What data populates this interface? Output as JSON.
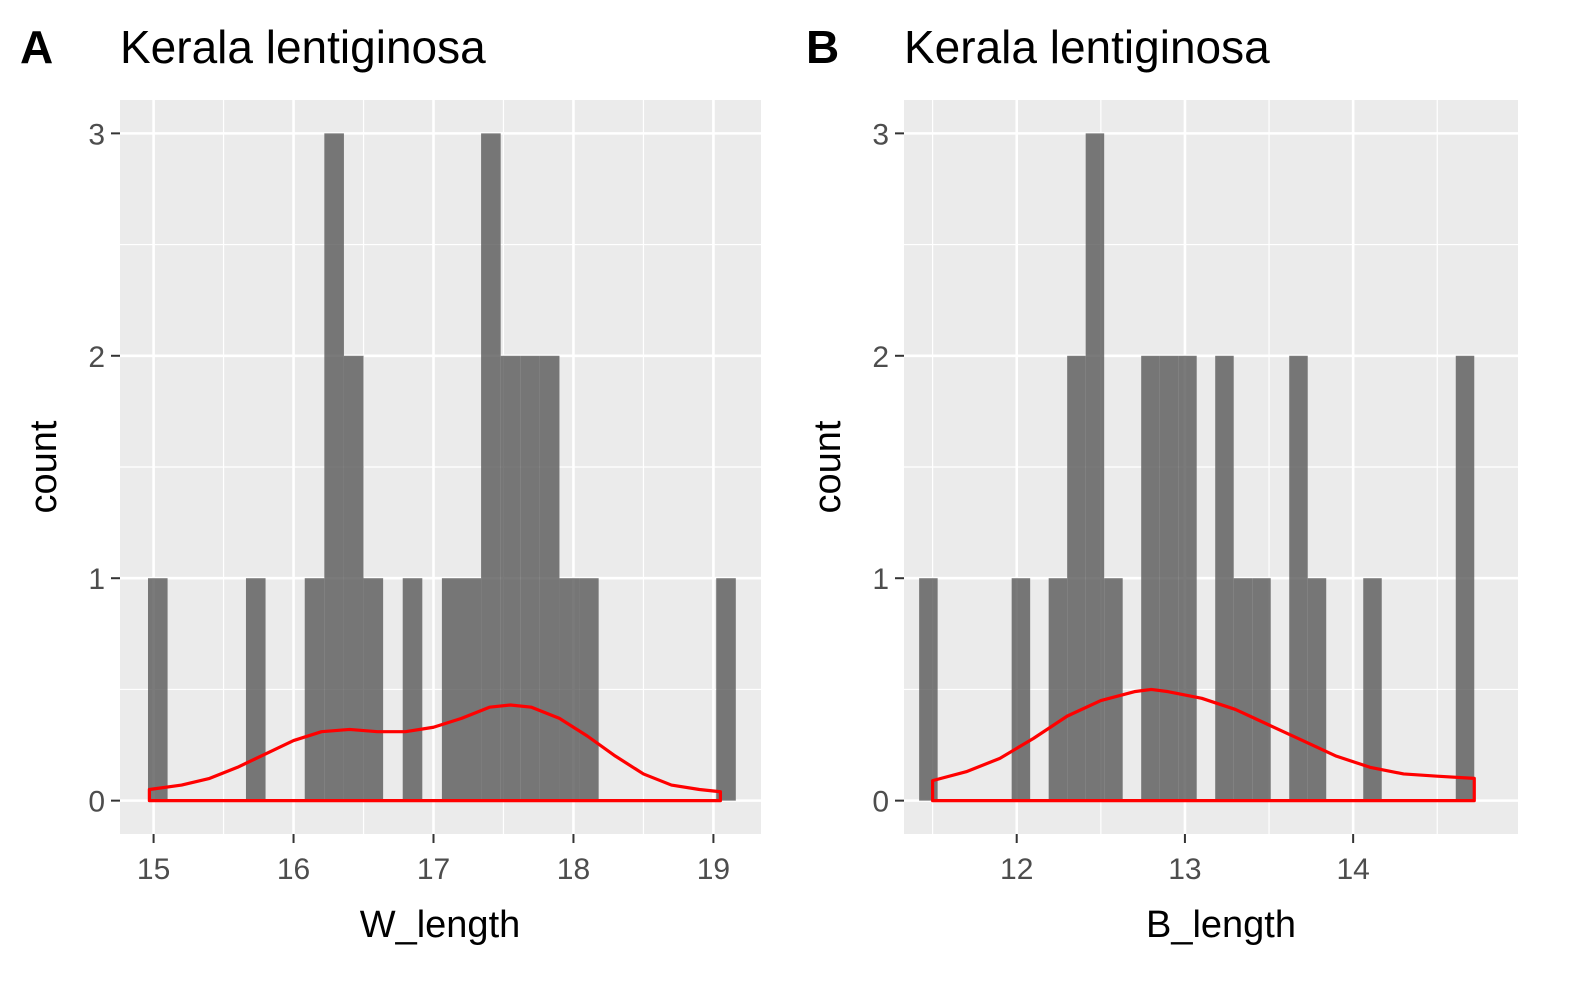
{
  "colors": {
    "panel_background": "#ebebeb",
    "grid": "#ffffff",
    "bar_fill": "#595959",
    "density_line": "#ff0000",
    "tick": "#333333"
  },
  "chart_data": [
    {
      "type": "bar",
      "tag": "A",
      "title": "Kerala lentiginosa",
      "xlabel": "W_length",
      "ylabel": "count",
      "xlim": [
        14.76,
        19.34
      ],
      "ylim": [
        -0.15,
        3.15
      ],
      "xticks": [
        15,
        16,
        17,
        18,
        19
      ],
      "yticks": [
        0,
        1,
        2,
        3
      ],
      "xtick_labels": [
        "15",
        "16",
        "17",
        "18",
        "19"
      ],
      "ytick_labels": [
        "0",
        "1",
        "2",
        "3"
      ],
      "grid": true,
      "bin_width": 0.14,
      "bins": [
        {
          "x": 15.03,
          "count": 1
        },
        {
          "x": 15.73,
          "count": 1
        },
        {
          "x": 16.15,
          "count": 1
        },
        {
          "x": 16.29,
          "count": 3
        },
        {
          "x": 16.43,
          "count": 2
        },
        {
          "x": 16.57,
          "count": 1
        },
        {
          "x": 16.85,
          "count": 1
        },
        {
          "x": 17.13,
          "count": 1
        },
        {
          "x": 17.27,
          "count": 1
        },
        {
          "x": 17.41,
          "count": 3
        },
        {
          "x": 17.55,
          "count": 2
        },
        {
          "x": 17.69,
          "count": 2
        },
        {
          "x": 17.83,
          "count": 2
        },
        {
          "x": 17.97,
          "count": 1
        },
        {
          "x": 18.11,
          "count": 1
        },
        {
          "x": 19.09,
          "count": 1
        }
      ],
      "density": {
        "x": [
          14.97,
          15.2,
          15.4,
          15.6,
          15.8,
          16.0,
          16.2,
          16.4,
          16.6,
          16.8,
          17.0,
          17.2,
          17.4,
          17.55,
          17.7,
          17.9,
          18.1,
          18.3,
          18.5,
          18.7,
          18.9,
          19.05
        ],
        "y": [
          0.05,
          0.07,
          0.1,
          0.15,
          0.21,
          0.27,
          0.31,
          0.32,
          0.31,
          0.31,
          0.33,
          0.37,
          0.42,
          0.43,
          0.42,
          0.37,
          0.29,
          0.2,
          0.12,
          0.07,
          0.05,
          0.04
        ]
      }
    },
    {
      "type": "bar",
      "tag": "B",
      "title": "Kerala lentiginosa",
      "xlabel": "B_length",
      "ylabel": "count",
      "xlim": [
        11.33,
        14.98
      ],
      "ylim": [
        -0.15,
        3.15
      ],
      "xticks": [
        12,
        13,
        14
      ],
      "yticks": [
        0,
        1,
        2,
        3
      ],
      "xtick_labels": [
        "12",
        "13",
        "14"
      ],
      "ytick_labels": [
        "0",
        "1",
        "2",
        "3"
      ],
      "grid": true,
      "bin_width": 0.11,
      "bins": [
        {
          "x": 11.475,
          "count": 1
        },
        {
          "x": 12.025,
          "count": 1
        },
        {
          "x": 12.245,
          "count": 1
        },
        {
          "x": 12.355,
          "count": 2
        },
        {
          "x": 12.465,
          "count": 3
        },
        {
          "x": 12.575,
          "count": 1
        },
        {
          "x": 12.795,
          "count": 2
        },
        {
          "x": 12.905,
          "count": 2
        },
        {
          "x": 13.015,
          "count": 2
        },
        {
          "x": 13.235,
          "count": 2
        },
        {
          "x": 13.345,
          "count": 1
        },
        {
          "x": 13.455,
          "count": 1
        },
        {
          "x": 13.675,
          "count": 2
        },
        {
          "x": 13.785,
          "count": 1
        },
        {
          "x": 14.115,
          "count": 1
        },
        {
          "x": 14.665,
          "count": 2
        }
      ],
      "density": {
        "x": [
          11.5,
          11.7,
          11.9,
          12.1,
          12.3,
          12.5,
          12.7,
          12.8,
          12.9,
          13.1,
          13.3,
          13.5,
          13.7,
          13.9,
          14.1,
          14.3,
          14.5,
          14.72
        ],
        "y": [
          0.09,
          0.13,
          0.19,
          0.28,
          0.38,
          0.45,
          0.49,
          0.5,
          0.49,
          0.46,
          0.41,
          0.34,
          0.27,
          0.2,
          0.15,
          0.12,
          0.11,
          0.1
        ]
      }
    }
  ]
}
